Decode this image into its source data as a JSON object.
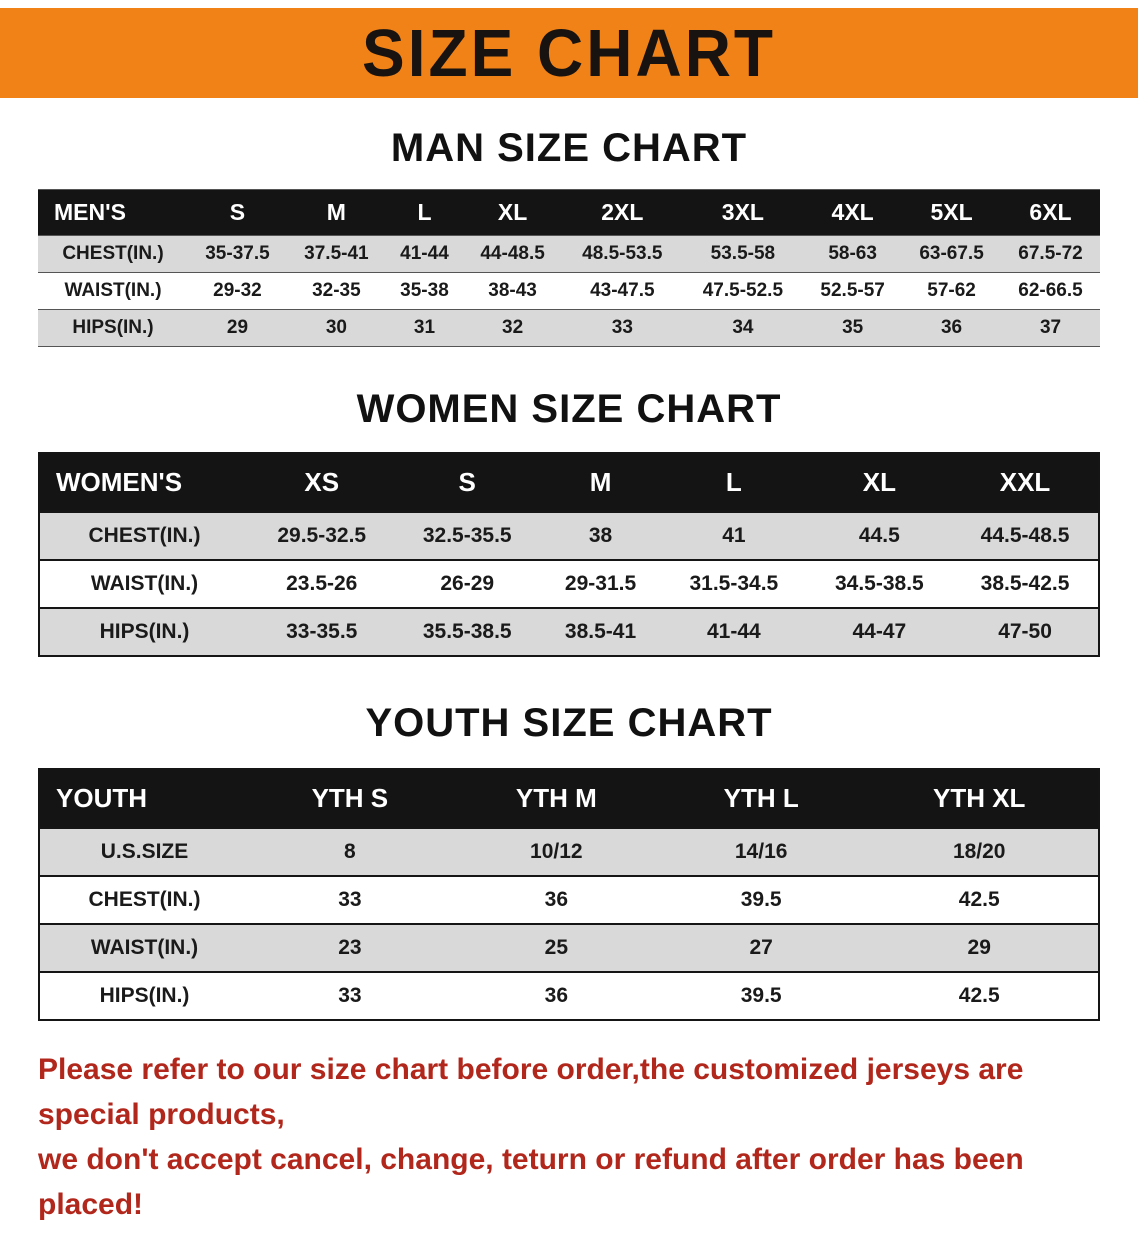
{
  "banner": {
    "title": "SIZE CHART"
  },
  "sections": {
    "men": {
      "heading": "MAN SIZE CHART",
      "table": {
        "title": "MEN'S",
        "columns": [
          "S",
          "M",
          "L",
          "XL",
          "2XL",
          "3XL",
          "4XL",
          "5XL",
          "6XL"
        ],
        "rows": [
          {
            "label": "CHEST(IN.)",
            "values": [
              "35-37.5",
              "37.5-41",
              "41-44",
              "44-48.5",
              "48.5-53.5",
              "53.5-58",
              "58-63",
              "63-67.5",
              "67.5-72"
            ]
          },
          {
            "label": "WAIST(IN.)",
            "values": [
              "29-32",
              "32-35",
              "35-38",
              "38-43",
              "43-47.5",
              "47.5-52.5",
              "52.5-57",
              "57-62",
              "62-66.5"
            ]
          },
          {
            "label": "HIPS(IN.)",
            "values": [
              "29",
              "30",
              "31",
              "32",
              "33",
              "34",
              "35",
              "36",
              "37"
            ]
          }
        ]
      }
    },
    "women": {
      "heading": "WOMEN SIZE CHART",
      "table": {
        "title": "WOMEN'S",
        "columns": [
          "XS",
          "S",
          "M",
          "L",
          "XL",
          "XXL"
        ],
        "rows": [
          {
            "label": "CHEST(IN.)",
            "values": [
              "29.5-32.5",
              "32.5-35.5",
              "38",
              "41",
              "44.5",
              "44.5-48.5"
            ]
          },
          {
            "label": "WAIST(IN.)",
            "values": [
              "23.5-26",
              "26-29",
              "29-31.5",
              "31.5-34.5",
              "34.5-38.5",
              "38.5-42.5"
            ]
          },
          {
            "label": "HIPS(IN.)",
            "values": [
              "33-35.5",
              "35.5-38.5",
              "38.5-41",
              "41-44",
              "44-47",
              "47-50"
            ]
          }
        ]
      }
    },
    "youth": {
      "heading": "YOUTH SIZE CHART",
      "table": {
        "title": "YOUTH",
        "columns": [
          "YTH S",
          "YTH M",
          "YTH L",
          "YTH XL"
        ],
        "rows": [
          {
            "label": "U.S.SIZE",
            "values": [
              "8",
              "10/12",
              "14/16",
              "18/20"
            ]
          },
          {
            "label": "CHEST(IN.)",
            "values": [
              "33",
              "36",
              "39.5",
              "42.5"
            ]
          },
          {
            "label": "WAIST(IN.)",
            "values": [
              "23",
              "25",
              "27",
              "29"
            ]
          },
          {
            "label": "HIPS(IN.)",
            "values": [
              "33",
              "36",
              "39.5",
              "42.5"
            ]
          }
        ]
      }
    }
  },
  "footer": {
    "line1": "Please refer to our size chart before order,the customized jerseys are special products,",
    "line2": "we don't accept cancel, change, teturn or refund after order has been placed!"
  },
  "theme": {
    "banner-orange": "#f08218",
    "header-black": "#141414",
    "row-gray": "#d9d9d9",
    "notice-red": "#b2271c"
  }
}
